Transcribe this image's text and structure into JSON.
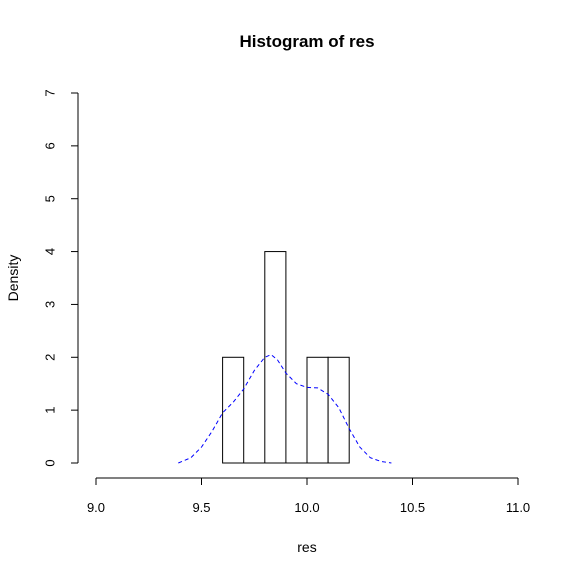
{
  "chart_data": {
    "type": "histogram",
    "title": "Histogram of res",
    "xlabel": "res",
    "ylabel": "Density",
    "xlim": [
      9.0,
      11.0
    ],
    "ylim": [
      0,
      7
    ],
    "x_ticks": [
      "9.0",
      "9.5",
      "10.0",
      "10.5",
      "11.0"
    ],
    "y_ticks": [
      "0",
      "1",
      "2",
      "3",
      "4",
      "5",
      "6",
      "7"
    ],
    "bins": [
      {
        "from": 9.6,
        "to": 9.7,
        "density": 2
      },
      {
        "from": 9.7,
        "to": 9.8,
        "density": 0
      },
      {
        "from": 9.8,
        "to": 9.9,
        "density": 4
      },
      {
        "from": 9.9,
        "to": 10.0,
        "density": 0
      },
      {
        "from": 10.0,
        "to": 10.1,
        "density": 2
      },
      {
        "from": 10.1,
        "to": 10.2,
        "density": 2
      }
    ],
    "density_curve": {
      "color": "#0000ff",
      "line_style": "dashed",
      "x": [
        9.39,
        9.45,
        9.5,
        9.55,
        9.6,
        9.65,
        9.7,
        9.75,
        9.8,
        9.83,
        9.86,
        9.9,
        9.95,
        10.0,
        10.05,
        10.1,
        10.15,
        10.2,
        10.25,
        10.3,
        10.35,
        10.4
      ],
      "y": [
        0.0,
        0.1,
        0.3,
        0.6,
        0.95,
        1.15,
        1.4,
        1.75,
        2.0,
        2.05,
        1.95,
        1.7,
        1.5,
        1.43,
        1.42,
        1.3,
        1.05,
        0.65,
        0.3,
        0.1,
        0.03,
        0.0
      ]
    },
    "grid": false,
    "legend": "none"
  }
}
